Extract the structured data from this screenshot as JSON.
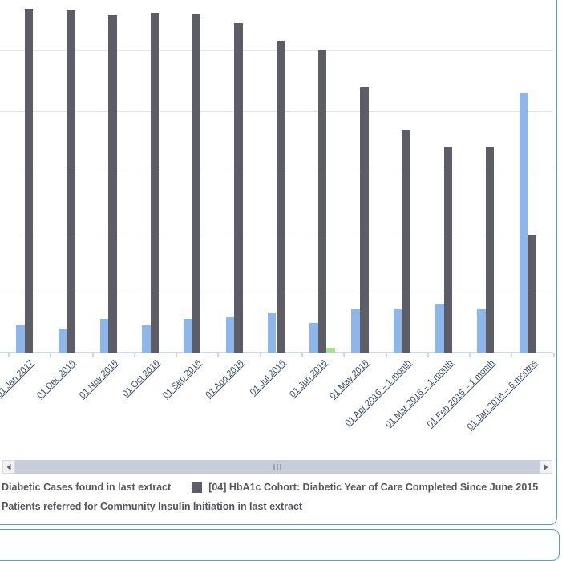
{
  "chart_data": {
    "type": "bar",
    "title": "",
    "xlabel": "",
    "ylabel": "",
    "categories": [
      "01 Jan 2017",
      "01 Dec 2016",
      "01 Nov 2016",
      "01 Oct 2016",
      "01 Sep 2016",
      "01 Aug 2016",
      "01 Jul 2016",
      "01 Jun 2016",
      "01 May 2016",
      "01 Apr 2016 – 1 month",
      "01 Mar 2016 – 1 month",
      "01 Feb 2016 – 1 month",
      "01 Jan 2016 – 6 months"
    ],
    "series": [
      {
        "name": "Diabetic Cases found in last extract",
        "color": "#8DB7EB",
        "values": [
          45,
          40,
          56,
          45,
          56,
          58,
          66,
          49,
          72,
          72,
          81,
          73,
          430
        ]
      },
      {
        "name": "[04] HbA1c Cohort: Diabetic Year of Care Completed Since June 2015",
        "color": "#5D5D67",
        "values": [
          570,
          567,
          559,
          563,
          562,
          545,
          516,
          500,
          439,
          369,
          340,
          340,
          195
        ]
      },
      {
        "name": "Patients referred for Community Insulin Initiation in last extract",
        "color": "#A3E48D",
        "values": [
          0,
          0,
          0,
          0,
          0,
          0,
          0,
          8,
          0,
          0,
          0,
          0,
          0
        ]
      }
    ],
    "ylim": [
      0,
      584
    ],
    "grid_step": 100,
    "grid": true,
    "y_axis_labels_visible": false,
    "legend_position": "bottom",
    "legend_rows": [
      [
        0,
        1
      ],
      [
        2
      ]
    ],
    "x_label_style": "rotated-45-underlined-links"
  },
  "scrollbar": {
    "orientation": "horizontal",
    "left_arrow_icon": "left-arrow",
    "right_arrow_icon": "right-arrow",
    "grip_icon": "grip-dots"
  },
  "colors": {
    "panel_border": "#4E9FD7",
    "gridline": "#E4E4E4",
    "axis_line": "#C9D9EE",
    "x_label": "#3A4B66",
    "legend_text": "#56565C",
    "scrollbar_track": "#C8CDDB",
    "scrollbar_button_bg": "#F2F1F6",
    "scrollbar_grip": "#9FA3B1"
  }
}
